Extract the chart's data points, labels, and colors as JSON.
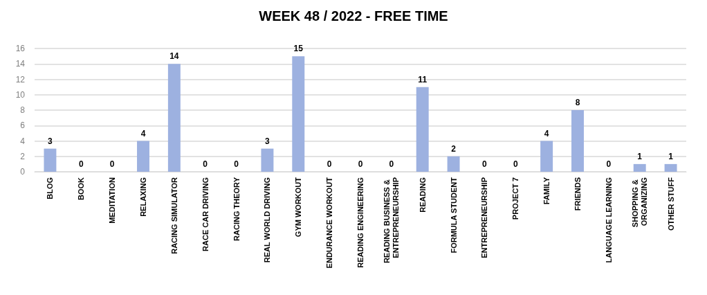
{
  "chart_data": {
    "type": "bar",
    "title": "WEEK 48 / 2022 - FREE TIME",
    "categories": [
      "BLOG",
      "BOOK",
      "MEDITATION",
      "RELAXING",
      "RACING SIMULATOR",
      "RACE CAR DRIVING",
      "RACING THEORY",
      "REAL WORLD DRIVING",
      "GYM WORKOUT",
      "ENDURANCE WORKOUT",
      "READING ENGINEERING",
      "READING BUSINESS & ENTREPRENEURSHIP",
      "READING",
      "FORMULA STUDENT",
      "ENTREPRENEURSHIP",
      "PROJECT 7",
      "FAMILY",
      "FRIENDS",
      "LANGUAGE LEARNING",
      "SHOPPING & ORGANIZING",
      "OTHER STUFF"
    ],
    "values": [
      3,
      0,
      0,
      4,
      14,
      0,
      0,
      3,
      15,
      0,
      0,
      0,
      11,
      2,
      0,
      0,
      4,
      8,
      0,
      1,
      1
    ],
    "color": "#9db1e0",
    "ylim": [
      0,
      16
    ],
    "yticks": [
      0,
      2,
      4,
      6,
      8,
      10,
      12,
      14,
      16
    ],
    "grid": "y",
    "data_labels": true
  }
}
